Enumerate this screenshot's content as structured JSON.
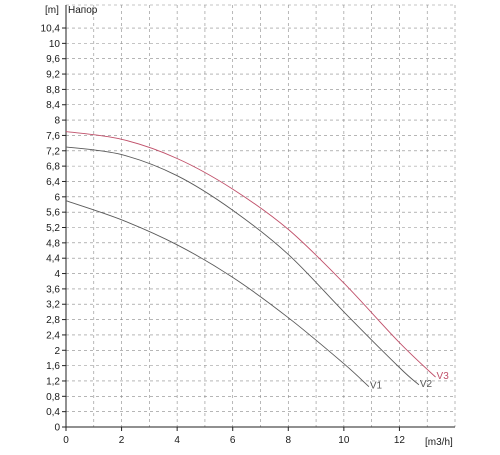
{
  "chart_data": {
    "type": "line",
    "title": "Напор",
    "ylabel": "[m]",
    "xlabel": "[m3/h]",
    "xlim": [
      0,
      14
    ],
    "ylim": [
      0,
      11
    ],
    "x_ticks": [
      0,
      2,
      4,
      6,
      8,
      10,
      12
    ],
    "x_tick_labels": [
      "0",
      "2",
      "4",
      "6",
      "8",
      "10",
      "12"
    ],
    "y_ticks": [
      0,
      0.4,
      0.8,
      1.2,
      1.6,
      2,
      2.4,
      2.8,
      3.2,
      3.6,
      4,
      4.4,
      4.8,
      5.2,
      5.6,
      6,
      6.4,
      6.8,
      7.2,
      7.6,
      8,
      8.4,
      8.8,
      9.2,
      9.6,
      10,
      10.4
    ],
    "y_tick_labels": [
      "0",
      "0,4",
      "0,8",
      "1,2",
      "1,6",
      "2",
      "2,4",
      "2,8",
      "3,2",
      "3,6",
      "4",
      "4,4",
      "4,8",
      "5,2",
      "5,6",
      "6",
      "6,4",
      "6,8",
      "7,2",
      "7,6",
      "8",
      "8,4",
      "8,8",
      "9,2",
      "9,6",
      "10",
      "10,4"
    ],
    "grid": true,
    "series": [
      {
        "name": "V1",
        "color": "#5a5a5a",
        "x": [
          0,
          2,
          4,
          6,
          8,
          10,
          10.9
        ],
        "y": [
          5.9,
          5.4,
          4.75,
          3.9,
          2.85,
          1.65,
          1.05
        ]
      },
      {
        "name": "V2",
        "color": "#5a5a5a",
        "x": [
          0,
          2,
          4,
          6,
          8,
          10,
          12,
          12.7
        ],
        "y": [
          7.3,
          7.1,
          6.55,
          5.65,
          4.5,
          3.0,
          1.55,
          1.1
        ]
      },
      {
        "name": "V3",
        "color": "#c0506a",
        "x": [
          0,
          2,
          4,
          6,
          8,
          10,
          12,
          13.3
        ],
        "y": [
          7.7,
          7.5,
          7.0,
          6.2,
          5.15,
          3.75,
          2.2,
          1.3
        ]
      }
    ]
  }
}
